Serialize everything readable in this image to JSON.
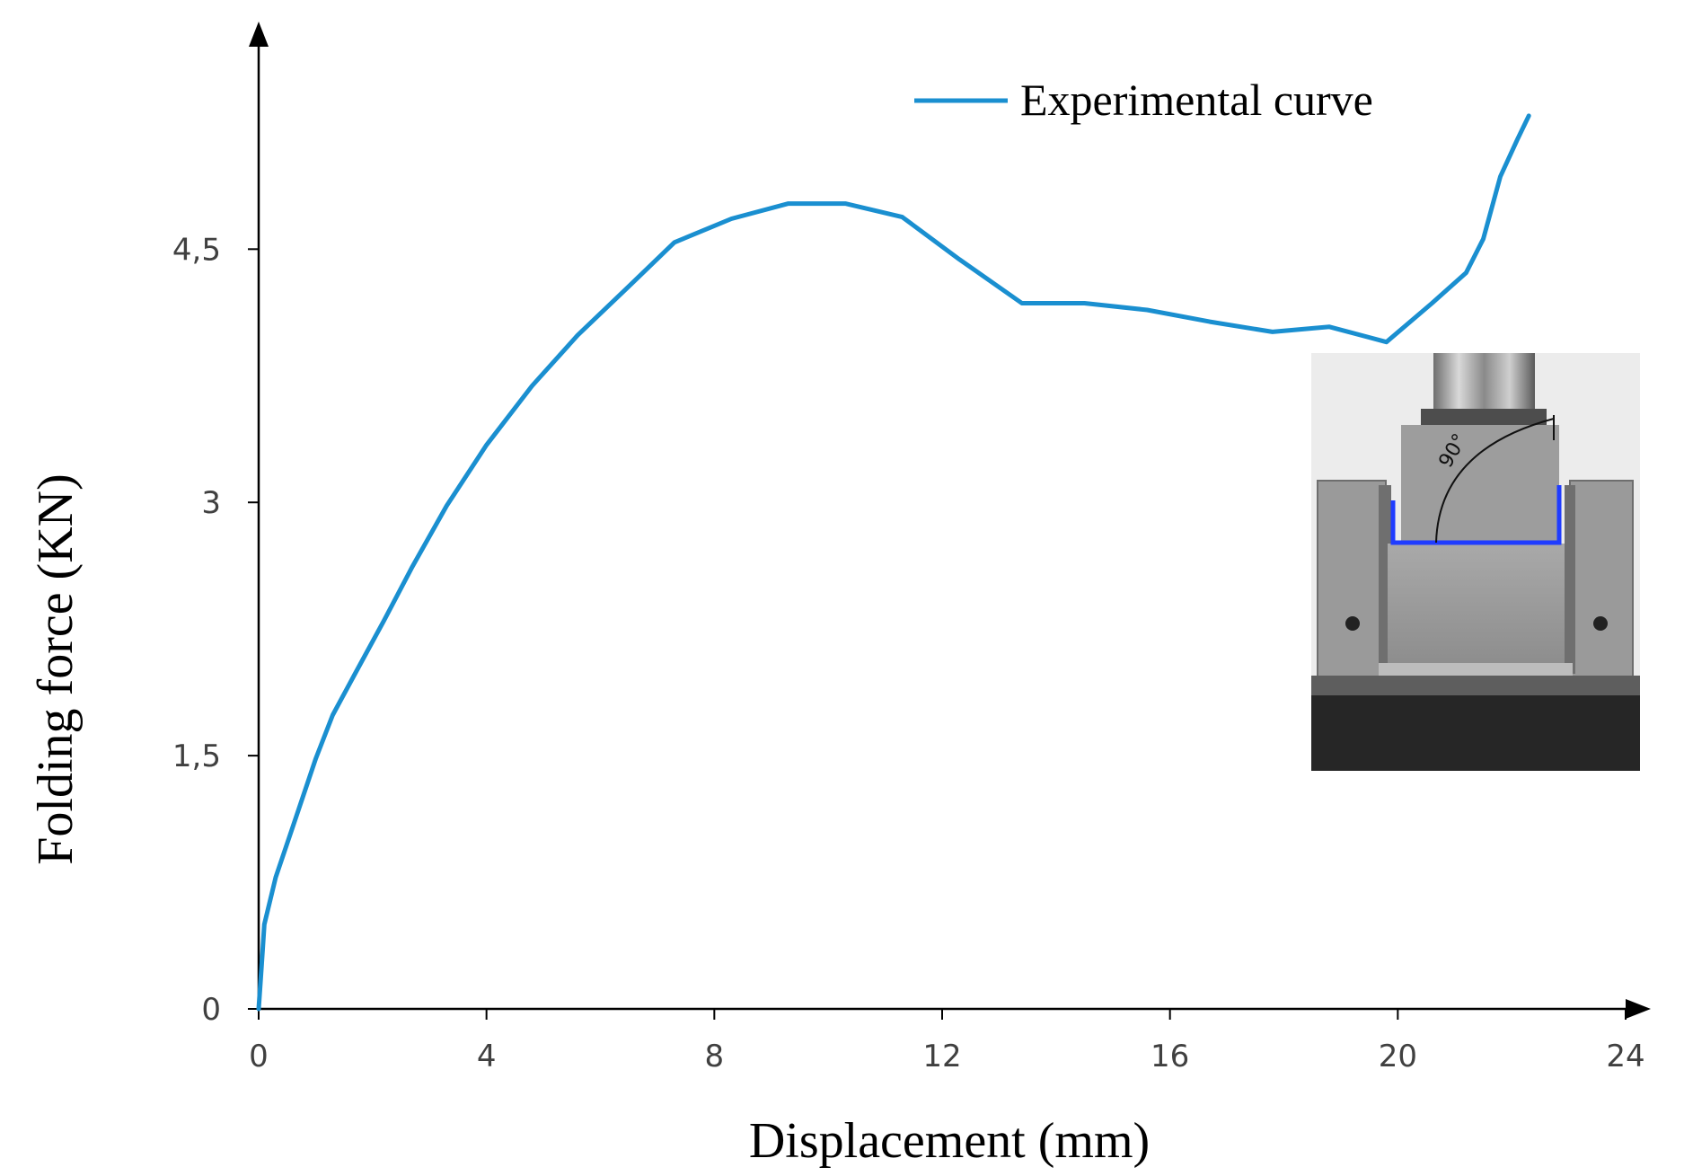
{
  "chart_data": {
    "type": "line",
    "title": "",
    "xlabel": "Displacement (mm)",
    "ylabel": "Folding force (KN)",
    "xlim": [
      0,
      24
    ],
    "ylim": [
      0,
      5.55
    ],
    "xticks": [
      0,
      4,
      8,
      12,
      16,
      20,
      24
    ],
    "yticks": [
      0,
      1.5,
      3,
      4.5
    ],
    "xtick_labels": [
      "0",
      "4",
      "8",
      "12",
      "16",
      "20",
      "24"
    ],
    "ytick_labels": [
      "0",
      "1,5",
      "3",
      "4,5"
    ],
    "grid": false,
    "legend": {
      "position": "top-right",
      "entries": [
        "Experimental curve"
      ]
    },
    "series": [
      {
        "name": "Experimental curve",
        "color": "#1a8fd0",
        "x": [
          0,
          0.05,
          0.1,
          0.3,
          0.6,
          1.0,
          1.3,
          1.7,
          2.2,
          2.7,
          3.3,
          4.0,
          4.8,
          5.6,
          6.5,
          7.3,
          8.3,
          9.3,
          10.3,
          11.3,
          12.3,
          13.4,
          14.5,
          15.6,
          16.7,
          17.8,
          18.8,
          19.8,
          20.6,
          21.2,
          21.5,
          21.8,
          22.1,
          22.3
        ],
        "y": [
          0.0,
          0.25,
          0.5,
          0.78,
          1.08,
          1.48,
          1.74,
          1.99,
          2.3,
          2.62,
          2.98,
          3.34,
          3.69,
          3.99,
          4.28,
          4.54,
          4.68,
          4.77,
          4.77,
          4.69,
          4.44,
          4.18,
          4.18,
          4.14,
          4.07,
          4.01,
          4.04,
          3.95,
          4.18,
          4.36,
          4.56,
          4.93,
          5.15,
          5.29
        ]
      }
    ]
  },
  "inset": {
    "caption": "90°",
    "description_icon": "folding-test-rig-photo"
  },
  "colors": {
    "series": "#1a8fd0",
    "axis": "#000000",
    "tick_text": "#404040"
  }
}
